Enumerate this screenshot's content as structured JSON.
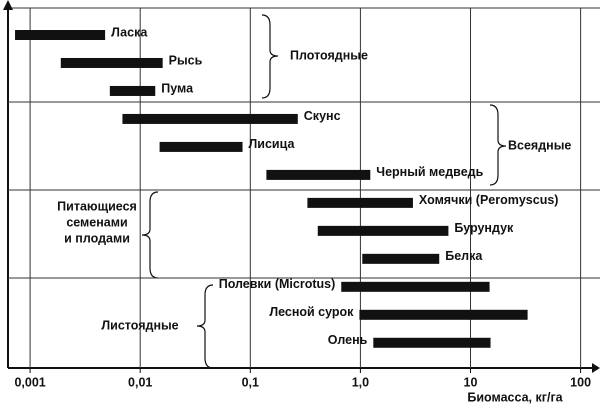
{
  "chart_data": {
    "type": "range-bar",
    "x_label": "Биомасса, кг/га",
    "xscale": "log",
    "xlim": [
      0.00063,
      150
    ],
    "xticks": [
      {
        "value": 0.001,
        "label": "0,001"
      },
      {
        "value": 0.01,
        "label": "0,01"
      },
      {
        "value": 0.1,
        "label": "0,1"
      },
      {
        "value": 1,
        "label": "1,0"
      },
      10,
      100
    ],
    "grid": true,
    "color": "#111111",
    "groups": [
      {
        "name": [
          "Плотоядные"
        ],
        "items": [
          {
            "name": "Ласка",
            "range": [
              0.00073,
              0.0048
            ]
          },
          {
            "name": "Рысь",
            "range": [
              0.0019,
              0.016
            ]
          },
          {
            "name": "Пума",
            "range": [
              0.0053,
              0.0137
            ]
          }
        ]
      },
      {
        "name": [
          "Всеядные"
        ],
        "items": [
          {
            "name": "Скунс",
            "range": [
              0.0069,
              0.27
            ]
          },
          {
            "name": "Лисица",
            "range": [
              0.015,
              0.085
            ]
          },
          {
            "name": "Черный медведь",
            "range": [
              0.14,
              1.23
            ]
          }
        ]
      },
      {
        "name": [
          "Питающиеся",
          "семенами",
          "и плодами"
        ],
        "items": [
          {
            "name": "Хомячки (Peromyscus)",
            "range": [
              0.33,
              3.0
            ]
          },
          {
            "name": "Бурундук",
            "range": [
              0.41,
              6.3
            ]
          },
          {
            "name": "Белка",
            "range": [
              1.04,
              5.2
            ]
          }
        ]
      },
      {
        "name": [
          "Листоядные"
        ],
        "items": [
          {
            "name": "Полевки (Microtus)",
            "range": [
              0.67,
              14.9
            ]
          },
          {
            "name": "Лесной сурок",
            "range": [
              0.98,
              33
            ]
          },
          {
            "name": "Олень",
            "range": [
              1.31,
              15.2
            ]
          }
        ]
      }
    ]
  }
}
